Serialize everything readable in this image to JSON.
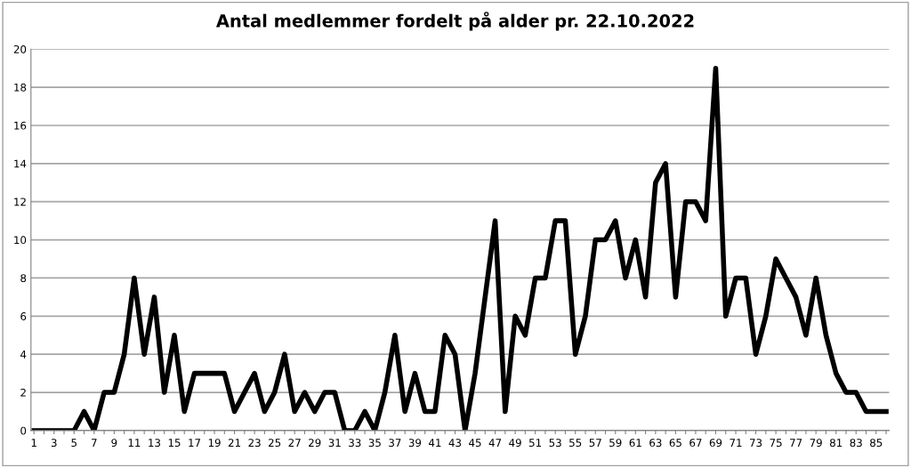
{
  "chart_data": {
    "type": "line",
    "title": "Antal medlemmer fordelt på alder pr. 22.10.2022",
    "categories": [
      "1",
      null,
      "3",
      null,
      "5",
      null,
      "7",
      null,
      "9",
      null,
      "11",
      null,
      "13",
      null,
      "15",
      null,
      "17",
      null,
      "19",
      null,
      "21",
      null,
      "23",
      null,
      "25",
      null,
      "27",
      null,
      "29",
      null,
      "31",
      null,
      "33",
      null,
      "35",
      null,
      "37",
      null,
      "39",
      null,
      "41",
      null,
      "43",
      null,
      "45",
      null,
      "47",
      null,
      "49",
      null,
      "51",
      null,
      "53",
      null,
      "55",
      null,
      "57",
      null,
      "59",
      null,
      "61",
      null,
      "63",
      null,
      "65",
      null,
      "67",
      null,
      "69",
      null,
      "71",
      null,
      "73",
      null,
      "75",
      null,
      "77",
      null,
      "79",
      null,
      "81",
      null,
      "83",
      null,
      "85",
      null
    ],
    "series": [
      {
        "color": "#000000",
        "values": [
          0,
          0,
          0,
          0,
          0,
          1,
          0,
          2,
          2,
          4,
          8,
          4,
          7,
          2,
          5,
          1,
          3,
          3,
          3,
          3,
          1,
          2,
          3,
          1,
          2,
          4,
          1,
          2,
          1,
          2,
          2,
          0,
          0,
          1,
          0,
          2,
          5,
          1,
          3,
          1,
          1,
          5,
          4,
          0,
          3,
          7,
          11,
          1,
          6,
          5,
          8,
          8,
          11,
          11,
          4,
          6,
          10,
          10,
          11,
          8,
          10,
          7,
          13,
          14,
          7,
          12,
          12,
          11,
          19,
          6,
          8,
          8,
          4,
          6,
          9,
          8,
          7,
          5,
          8,
          5,
          3,
          2,
          2,
          1,
          1,
          1
        ]
      }
    ],
    "ylim": [
      0,
      20
    ],
    "yticks": [
      0,
      2,
      4,
      6,
      8,
      10,
      12,
      14,
      16,
      18,
      20
    ],
    "grid": "y",
    "marker": "none",
    "line_style": "solid"
  }
}
